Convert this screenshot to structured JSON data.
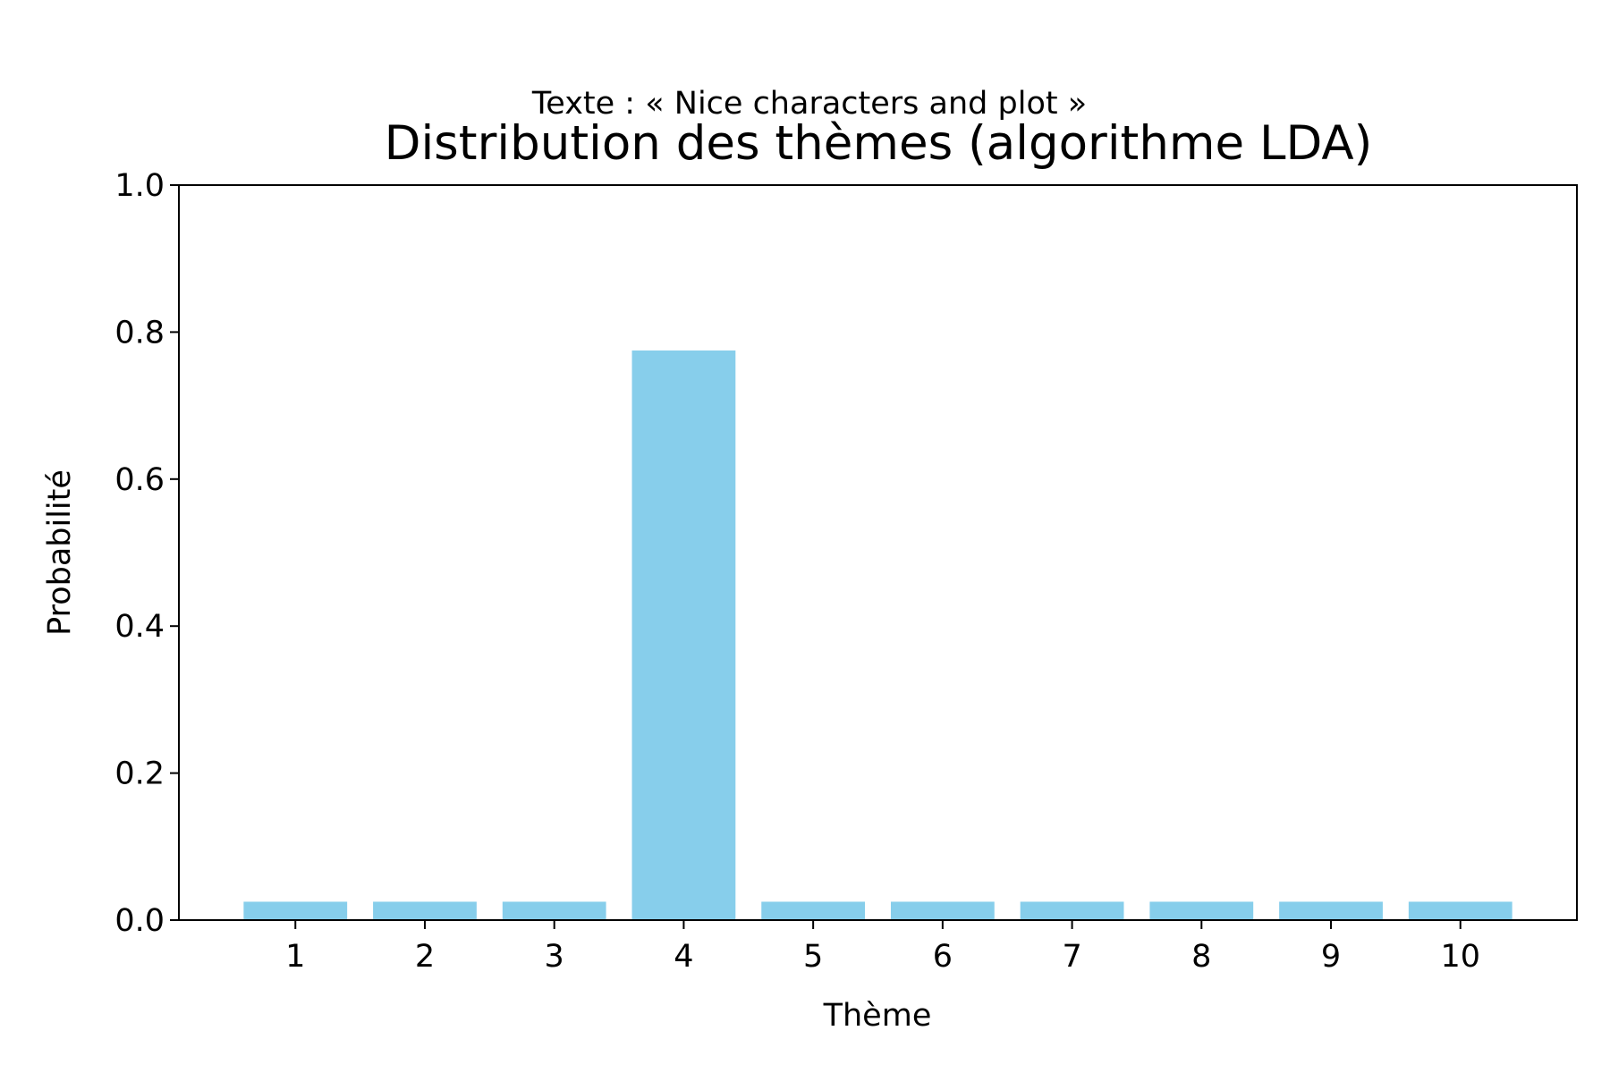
{
  "chart_data": {
    "type": "bar",
    "suptitle": "Texte : « Nice characters and plot »",
    "title": "Distribution des thèmes (algorithme LDA)",
    "xlabel": "Thème",
    "ylabel": "Probabilité",
    "categories": [
      "1",
      "2",
      "3",
      "4",
      "5",
      "6",
      "7",
      "8",
      "9",
      "10"
    ],
    "values": [
      0.025,
      0.025,
      0.025,
      0.775,
      0.025,
      0.025,
      0.025,
      0.025,
      0.025,
      0.025
    ],
    "ylim": [
      0,
      1.0
    ],
    "yticks": [
      "0.0",
      "0.2",
      "0.4",
      "0.6",
      "0.8",
      "1.0"
    ],
    "bar_color": "#87ceeb",
    "grid": false,
    "legend": "none"
  }
}
